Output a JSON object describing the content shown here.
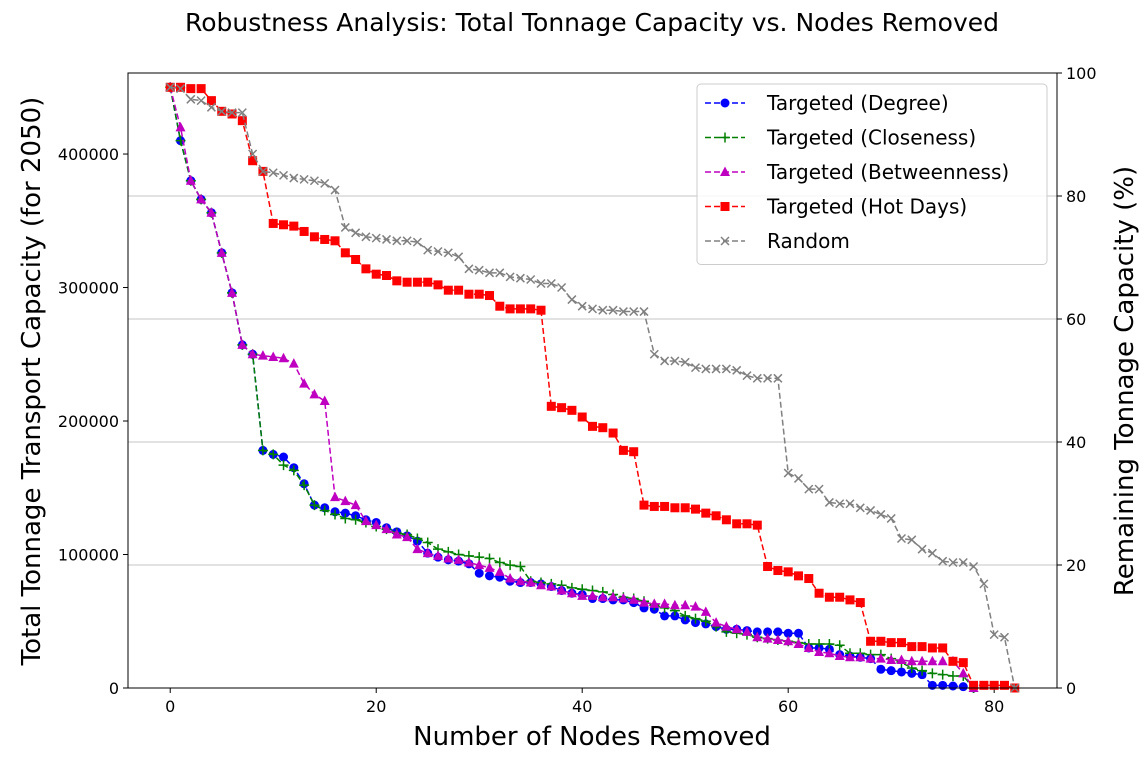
{
  "chart_data": {
    "type": "line",
    "title": "Robustness Analysis: Total Tonnage Capacity vs. Nodes Removed",
    "x_label": "Number of Nodes Removed",
    "y_label": "Total Tonnage Transport Capacity (for 2050)",
    "y2_label": "Remaining Tonnage Capacity (%)",
    "xlim": [
      -4.1,
      86.1
    ],
    "xticks": [
      0,
      20,
      40,
      60,
      80
    ],
    "ylim": [
      0,
      460700
    ],
    "yticks": [
      0,
      100000,
      200000,
      300000,
      400000
    ],
    "y2lim": [
      0,
      100
    ],
    "y2ticks": [
      0,
      20,
      40,
      60,
      80,
      100
    ],
    "grid": true,
    "legend": "upper right",
    "x": [
      0,
      1,
      2,
      3,
      4,
      5,
      6,
      7,
      8,
      9,
      10,
      11,
      12,
      13,
      14,
      15,
      16,
      17,
      18,
      19,
      20,
      21,
      22,
      23,
      24,
      25,
      26,
      27,
      28,
      29,
      30,
      31,
      32,
      33,
      34,
      35,
      36,
      37,
      38,
      39,
      40,
      41,
      42,
      43,
      44,
      45,
      46,
      47,
      48,
      49,
      50,
      51,
      52,
      53,
      54,
      55,
      56,
      57,
      58,
      59,
      60,
      61,
      62,
      63,
      64,
      65,
      66,
      67,
      68,
      69,
      70,
      71,
      72,
      73,
      74,
      75,
      76,
      77,
      78,
      79,
      80,
      81,
      82
    ],
    "series": [
      {
        "name": "Targeted (Degree)",
        "color": "#0000ff",
        "marker": "circle",
        "values": [
          450000,
          410000,
          380000,
          366000,
          356000,
          326000,
          296000,
          257000,
          250000,
          178000,
          175000,
          173000,
          165000,
          153000,
          137000,
          135000,
          132000,
          131000,
          129000,
          126000,
          124000,
          120000,
          117000,
          114000,
          110000,
          101000,
          98000,
          96000,
          95000,
          93000,
          86000,
          84000,
          83000,
          80000,
          79000,
          79000,
          78000,
          76000,
          73000,
          71000,
          70000,
          67000,
          67000,
          66000,
          66000,
          64000,
          60000,
          59000,
          54000,
          54000,
          51000,
          49000,
          48000,
          46000,
          44000,
          44000,
          43000,
          42000,
          42000,
          42000,
          41000,
          41000,
          30000,
          30000,
          29000,
          25000,
          24000,
          23000,
          22000,
          14000,
          13000,
          12000,
          11000,
          10000,
          2000,
          2000,
          1500,
          1000,
          0,
          null,
          null,
          null,
          null
        ]
      },
      {
        "name": "Targeted (Closeness)",
        "color": "#008000",
        "marker": "plus",
        "values": [
          450000,
          410000,
          380000,
          366000,
          356000,
          326000,
          296000,
          257000,
          250000,
          178000,
          175000,
          167000,
          163000,
          152000,
          137000,
          133000,
          130000,
          127000,
          126000,
          124000,
          121000,
          119000,
          116000,
          115000,
          112000,
          109000,
          104000,
          102000,
          100000,
          99000,
          98000,
          97000,
          94000,
          92000,
          91000,
          80000,
          79000,
          78000,
          77000,
          75000,
          74000,
          73000,
          72000,
          70000,
          68000,
          67000,
          65000,
          62000,
          60000,
          58000,
          54000,
          52000,
          50000,
          46000,
          42000,
          41000,
          40000,
          38000,
          37000,
          36000,
          35000,
          34000,
          33000,
          33000,
          33000,
          32000,
          26000,
          26000,
          25000,
          25000,
          22000,
          19000,
          15000,
          13000,
          11000,
          10000,
          9000,
          9000,
          0,
          null,
          null,
          null,
          null
        ]
      },
      {
        "name": "Targeted (Betweenness)",
        "color": "#c000c0",
        "marker": "triangle",
        "values": [
          450000,
          420000,
          380000,
          366000,
          356000,
          326000,
          296000,
          257000,
          250000,
          249000,
          248000,
          247000,
          243000,
          228000,
          220000,
          215000,
          143000,
          140000,
          137000,
          125000,
          122000,
          119000,
          115000,
          113000,
          104000,
          101000,
          99000,
          97000,
          96000,
          94000,
          92000,
          90000,
          87000,
          82000,
          80000,
          79000,
          77000,
          76000,
          73000,
          71000,
          69000,
          69000,
          68000,
          68000,
          67000,
          66000,
          64000,
          63000,
          63000,
          62000,
          62000,
          61000,
          57000,
          49000,
          46000,
          44000,
          42000,
          38000,
          37000,
          36000,
          35000,
          33000,
          30000,
          27000,
          26000,
          24000,
          23000,
          23000,
          22000,
          22000,
          21000,
          21000,
          20000,
          20000,
          20000,
          20000,
          20000,
          11000,
          0,
          null,
          null,
          null,
          null
        ]
      },
      {
        "name": "Targeted (Hot Days)",
        "color": "#ff0000",
        "marker": "square",
        "values": [
          450000,
          450000,
          449000,
          449000,
          440000,
          432000,
          430000,
          425000,
          395000,
          387000,
          348000,
          347000,
          346000,
          342000,
          338000,
          336000,
          335000,
          326000,
          321000,
          314000,
          310000,
          309000,
          305000,
          304000,
          304000,
          304000,
          302000,
          298000,
          298000,
          295000,
          295000,
          294000,
          286000,
          284000,
          284000,
          284000,
          283000,
          211000,
          210000,
          208000,
          203000,
          196000,
          195000,
          191000,
          178000,
          177000,
          137000,
          136000,
          136000,
          135000,
          135000,
          134000,
          131000,
          129000,
          126000,
          123000,
          123000,
          122000,
          91000,
          88000,
          87000,
          84000,
          82000,
          71000,
          68000,
          68000,
          66000,
          64000,
          35000,
          35000,
          34000,
          34000,
          31000,
          31000,
          30000,
          30000,
          20000,
          19000,
          2000,
          2000,
          2000,
          2000,
          0
        ]
      },
      {
        "name": "Random",
        "color": "#808080",
        "marker": "x",
        "values": [
          450000,
          449000,
          441000,
          440000,
          435000,
          432000,
          431000,
          431000,
          400000,
          387000,
          386000,
          384000,
          382000,
          381000,
          380000,
          378000,
          373000,
          345000,
          341000,
          338000,
          337000,
          336000,
          335000,
          335000,
          334000,
          328000,
          327000,
          326000,
          323000,
          314000,
          313000,
          311000,
          311000,
          308000,
          307000,
          306000,
          303000,
          303000,
          300000,
          291000,
          286000,
          284000,
          283000,
          283000,
          282000,
          282000,
          282000,
          250000,
          245000,
          245000,
          244000,
          240000,
          239000,
          239000,
          239000,
          238000,
          234000,
          232000,
          232000,
          232000,
          161000,
          157000,
          149000,
          149000,
          139000,
          138000,
          138000,
          135000,
          133000,
          130000,
          127000,
          112000,
          111000,
          104000,
          101000,
          95000,
          94000,
          94000,
          91000,
          78000,
          40000,
          38000,
          0
        ]
      }
    ]
  }
}
